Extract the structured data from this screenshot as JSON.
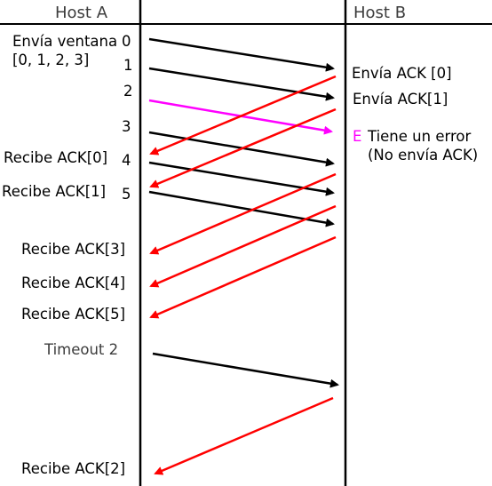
{
  "hosts": {
    "a": "Host A",
    "b": "Host B"
  },
  "left_labels": {
    "envia_ventana": "Envía ventana",
    "ventana": "[0, 1, 2, 3]",
    "recibe_ack0": "Recibe ACK[0]",
    "recibe_ack1": "Recibe ACK[1]",
    "recibe_ack3": "Recibe ACK[3]",
    "recibe_ack4": "Recibe ACK[4]",
    "recibe_ack5": "Recibe ACK[5]",
    "timeout": "Timeout 2",
    "recibe_ack2": "Recibe ACK[2]"
  },
  "packet_numbers": [
    "0",
    "1",
    "2",
    "3",
    "4",
    "5"
  ],
  "right_labels": {
    "envia_ack0": "Envía ACK [0]",
    "envia_ack1": "Envía ACK[1]",
    "error_marker": "E",
    "tiene_error": "Tiene un error",
    "no_envia": "(No envía ACK)"
  },
  "colors": {
    "data": "#000000",
    "ack": "#ff0000",
    "error": "#ff00ff"
  }
}
